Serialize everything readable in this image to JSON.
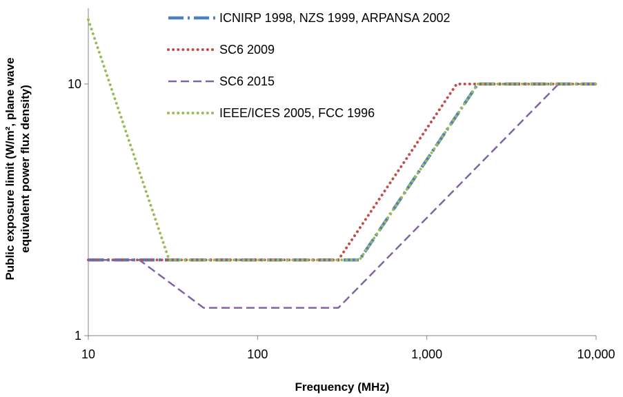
{
  "chart_data": {
    "type": "line",
    "xlabel": "Frequency (MHz)",
    "ylabel_line1": "Public exposure limit (W/m², plane wave",
    "ylabel_line2": "equivalent power flux density)",
    "x_scale": "log",
    "y_scale": "log",
    "xlim": [
      10,
      10000
    ],
    "ylim": [
      1,
      20
    ],
    "x_ticks": [
      10,
      100,
      1000,
      10000
    ],
    "x_tick_labels": [
      "10",
      "100",
      "1,000",
      "10,000"
    ],
    "y_ticks": [
      1,
      10
    ],
    "y_tick_labels": [
      "1",
      "10"
    ],
    "grid": false,
    "legend_position": "top-right",
    "series": [
      {
        "name": "ICNIRP 1998, NZS 1999, ARPANSA 2002",
        "color": "#4f81bd",
        "dash_color": "#4f81bd",
        "x": [
          10,
          400,
          2000,
          10000
        ],
        "y": [
          2,
          2,
          10,
          10
        ]
      },
      {
        "name": "SC6 2009",
        "color": "#c0504d",
        "x": [
          10,
          300,
          1500,
          10000
        ],
        "y": [
          2,
          2,
          10,
          10
        ]
      },
      {
        "name": "SC6 2015",
        "color": "#8064a2",
        "x": [
          10,
          20,
          48,
          300,
          6000,
          10000
        ],
        "y": [
          2,
          2,
          1.29,
          1.29,
          10,
          10
        ]
      },
      {
        "name": "IEEE/ICES 2005, FCC 1996",
        "color": "#9bbb59",
        "x": [
          10,
          30,
          400,
          2000,
          10000
        ],
        "y": [
          18,
          2,
          2,
          10,
          10
        ]
      }
    ]
  }
}
